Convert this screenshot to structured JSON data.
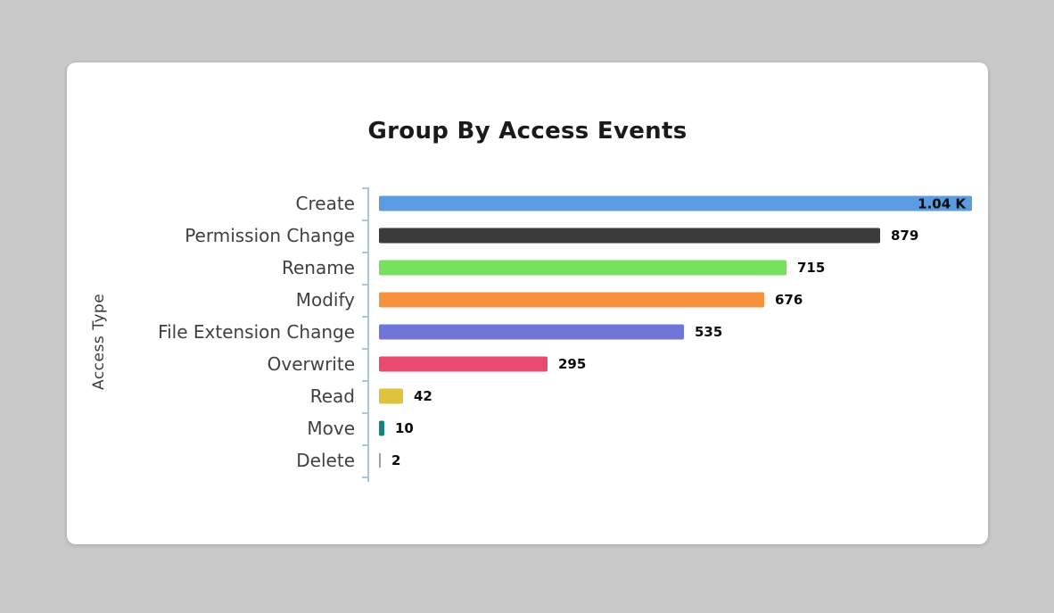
{
  "page": {
    "background_color": "#c8c8c8",
    "card_background": "#ffffff"
  },
  "chart_data": {
    "type": "bar",
    "orientation": "horizontal",
    "title": "Group By Access Events",
    "ylabel": "Access Type",
    "xlabel": "",
    "legend": false,
    "grid": false,
    "max_value": 1040,
    "categories": [
      "Create",
      "Permission Change",
      "Rename",
      "Modify",
      "File Extension Change",
      "Overwrite",
      "Read",
      "Move",
      "Delete"
    ],
    "values": [
      1040,
      879,
      715,
      676,
      535,
      295,
      42,
      10,
      2
    ],
    "value_labels": [
      "1.04 K",
      "879",
      "715",
      "676",
      "535",
      "295",
      "42",
      "10",
      "2"
    ],
    "colors": [
      "#5b9ce0",
      "#3b3b3b",
      "#75e15f",
      "#f6923d",
      "#7175da",
      "#e94a70",
      "#dec33c",
      "#0f857c",
      "#9aa0a6"
    ],
    "label_inside": [
      true,
      false,
      false,
      false,
      false,
      false,
      false,
      false,
      false
    ],
    "axis_color": "#aac4da"
  }
}
